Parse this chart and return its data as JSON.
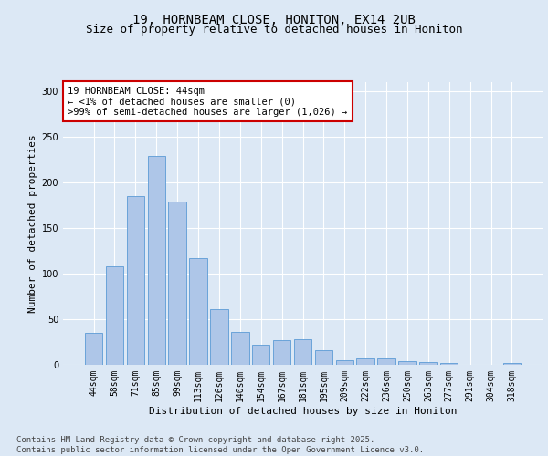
{
  "title_line1": "19, HORNBEAM CLOSE, HONITON, EX14 2UB",
  "title_line2": "Size of property relative to detached houses in Honiton",
  "xlabel": "Distribution of detached houses by size in Honiton",
  "ylabel": "Number of detached properties",
  "categories": [
    "44sqm",
    "58sqm",
    "71sqm",
    "85sqm",
    "99sqm",
    "113sqm",
    "126sqm",
    "140sqm",
    "154sqm",
    "167sqm",
    "181sqm",
    "195sqm",
    "209sqm",
    "222sqm",
    "236sqm",
    "250sqm",
    "263sqm",
    "277sqm",
    "291sqm",
    "304sqm",
    "318sqm"
  ],
  "values": [
    35,
    108,
    185,
    229,
    179,
    117,
    61,
    36,
    22,
    27,
    28,
    16,
    5,
    7,
    7,
    4,
    3,
    2,
    0,
    0,
    2
  ],
  "bar_color": "#aec6e8",
  "bar_edge_color": "#5b9bd5",
  "annotation_line1": "19 HORNBEAM CLOSE: 44sqm",
  "annotation_line2": "← <1% of detached houses are smaller (0)",
  "annotation_line3": ">99% of semi-detached houses are larger (1,026) →",
  "annotation_box_color": "#ffffff",
  "annotation_box_edge_color": "#cc0000",
  "ylim": [
    0,
    310
  ],
  "yticks": [
    0,
    50,
    100,
    150,
    200,
    250,
    300
  ],
  "background_color": "#dce8f5",
  "footer_text": "Contains HM Land Registry data © Crown copyright and database right 2025.\nContains public sector information licensed under the Open Government Licence v3.0.",
  "title_fontsize": 10,
  "subtitle_fontsize": 9,
  "axis_label_fontsize": 8,
  "tick_fontsize": 7,
  "annotation_fontsize": 7.5,
  "footer_fontsize": 6.5
}
